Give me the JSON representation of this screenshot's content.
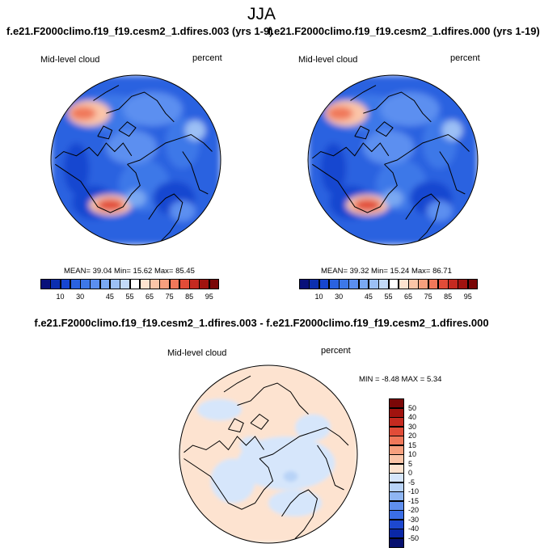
{
  "title": "JJA",
  "panels": [
    {
      "case_title": "f.e21.F2000climo.f19_f19.cesm2_1.dfires.003 (yrs 1-9)",
      "variable": "Mid-level cloud",
      "units": "percent",
      "stats": "MEAN=  39.04   Min=  15.62   Max=  85.45"
    },
    {
      "case_title": "f.e21.F2000climo.f19_f19.cesm2_1.dfires.000 (yrs 1-19)",
      "variable": "Mid-level cloud",
      "units": "percent",
      "stats": "MEAN=  39.32   Min=  15.24   Max=  86.71"
    }
  ],
  "diff_panel": {
    "title": "f.e21.F2000climo.f19_f19.cesm2_1.dfires.003 - f.e21.F2000climo.f19_f19.cesm2_1.dfires.000",
    "variable": "Mid-level cloud",
    "units": "percent",
    "stats": "MIN =  -8.48 MAX =   5.34"
  },
  "chart_data": [
    {
      "type": "heatmap",
      "projection": "polar stereographic (north)",
      "title": "Mid-level cloud",
      "units": "percent",
      "mean": 39.04,
      "min": 15.62,
      "max": 85.45,
      "colorbar_levels": [
        5,
        10,
        20,
        30,
        35,
        40,
        45,
        50,
        55,
        60,
        65,
        70,
        75,
        80,
        85,
        90,
        95
      ],
      "colorbar_tick_labels": [
        "10",
        "30",
        "45",
        "55",
        "65",
        "75",
        "85",
        "95"
      ]
    },
    {
      "type": "heatmap",
      "projection": "polar stereographic (north)",
      "title": "Mid-level cloud",
      "units": "percent",
      "mean": 39.32,
      "min": 15.24,
      "max": 86.71,
      "colorbar_levels": [
        5,
        10,
        20,
        30,
        35,
        40,
        45,
        50,
        55,
        60,
        65,
        70,
        75,
        80,
        85,
        90,
        95
      ],
      "colorbar_tick_labels": [
        "10",
        "30",
        "45",
        "55",
        "65",
        "75",
        "85",
        "95"
      ]
    },
    {
      "type": "heatmap",
      "projection": "polar stereographic (north)",
      "title": "Mid-level cloud",
      "units": "percent",
      "min": -8.48,
      "max": 5.34,
      "colorbar_levels": [
        -50,
        -40,
        -30,
        -20,
        -15,
        -10,
        -5,
        0,
        5,
        10,
        15,
        20,
        30,
        40,
        50
      ],
      "colorbar_tick_labels": [
        "50",
        "40",
        "30",
        "20",
        "15",
        "10",
        "5",
        "0",
        "-5",
        "-10",
        "-15",
        "-20",
        "-30",
        "-40",
        "-50"
      ]
    }
  ],
  "colors": {
    "seq": [
      "#08107a",
      "#0b2fb0",
      "#1746d0",
      "#2a62e0",
      "#3d78e8",
      "#5b8ff0",
      "#7aa9f2",
      "#9cc0f5",
      "#c3daf8",
      "#ffffff",
      "#fde3d0",
      "#fbc5a8",
      "#f7a07e",
      "#f0785a",
      "#e14c38",
      "#c52a20",
      "#a1130f",
      "#7a0707"
    ],
    "div": [
      "#7a0707",
      "#a1130f",
      "#c52a20",
      "#e14c38",
      "#f0785a",
      "#f7a07e",
      "#fbc5a8",
      "#fde3d0",
      "#d6e6fb",
      "#b8d3f7",
      "#8fb6f2",
      "#5f8fee",
      "#3b6ee6",
      "#1d48cf",
      "#0a27a6",
      "#06106f"
    ]
  }
}
